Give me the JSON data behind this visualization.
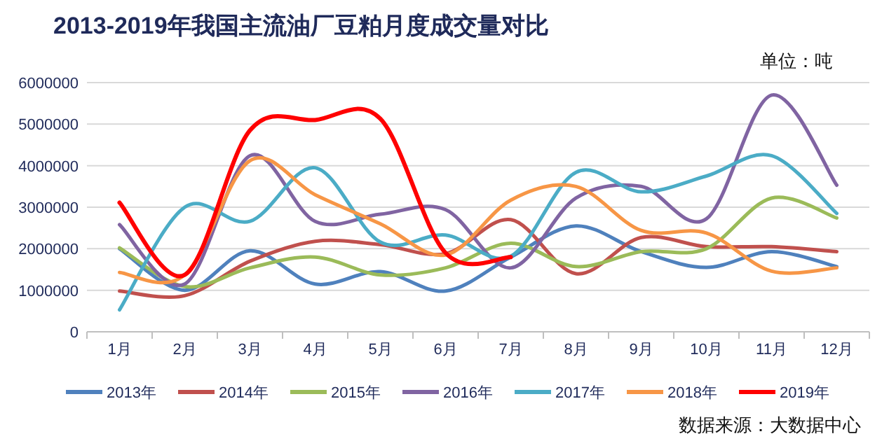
{
  "chart_data": {
    "type": "line",
    "title": "2013-2019年我国主流油厂豆粕月度成交量对比",
    "annotations": [
      "单位：吨",
      "数据来源：大数据中心"
    ],
    "categories": [
      "1月",
      "2月",
      "3月",
      "4月",
      "5月",
      "6月",
      "7月",
      "8月",
      "9月",
      "10月",
      "11月",
      "12月"
    ],
    "ylim": [
      0,
      6000000
    ],
    "yticks": [
      0,
      1000000,
      2000000,
      3000000,
      4000000,
      5000000,
      6000000
    ],
    "grid": "y",
    "legend": "bottom",
    "marker": "none",
    "line_style": "solid",
    "series": [
      {
        "name": "2013年",
        "color": "#4f81bd",
        "values": [
          2000000,
          1000000,
          1950000,
          1150000,
          1450000,
          980000,
          1800000,
          2550000,
          1930000,
          1550000,
          1930000,
          1570000
        ]
      },
      {
        "name": "2014年",
        "color": "#c0504d",
        "values": [
          980000,
          870000,
          1700000,
          2180000,
          2100000,
          1880000,
          2700000,
          1400000,
          2270000,
          2050000,
          2050000,
          1930000
        ]
      },
      {
        "name": "2015年",
        "color": "#9bbb59",
        "values": [
          2020000,
          1090000,
          1540000,
          1800000,
          1370000,
          1540000,
          2130000,
          1570000,
          1930000,
          2000000,
          3220000,
          2740000
        ]
      },
      {
        "name": "2016年",
        "color": "#8064a2",
        "values": [
          2580000,
          1150000,
          4240000,
          2660000,
          2830000,
          2940000,
          1540000,
          3220000,
          3500000,
          2720000,
          5700000,
          3530000
        ]
      },
      {
        "name": "2017年",
        "color": "#4bacc6",
        "values": [
          530000,
          3000000,
          2660000,
          3950000,
          2160000,
          2330000,
          1820000,
          3840000,
          3370000,
          3750000,
          4240000,
          2850000
        ]
      },
      {
        "name": "2018年",
        "color": "#f79646",
        "values": [
          1430000,
          1370000,
          4120000,
          3300000,
          2600000,
          1850000,
          3170000,
          3500000,
          2440000,
          2380000,
          1460000,
          1540000
        ]
      },
      {
        "name": "2019年",
        "color": "#ff0000",
        "values": [
          3110000,
          1370000,
          4850000,
          5100000,
          5130000,
          1900000,
          1800000,
          null,
          null,
          null,
          null,
          null
        ]
      }
    ]
  }
}
